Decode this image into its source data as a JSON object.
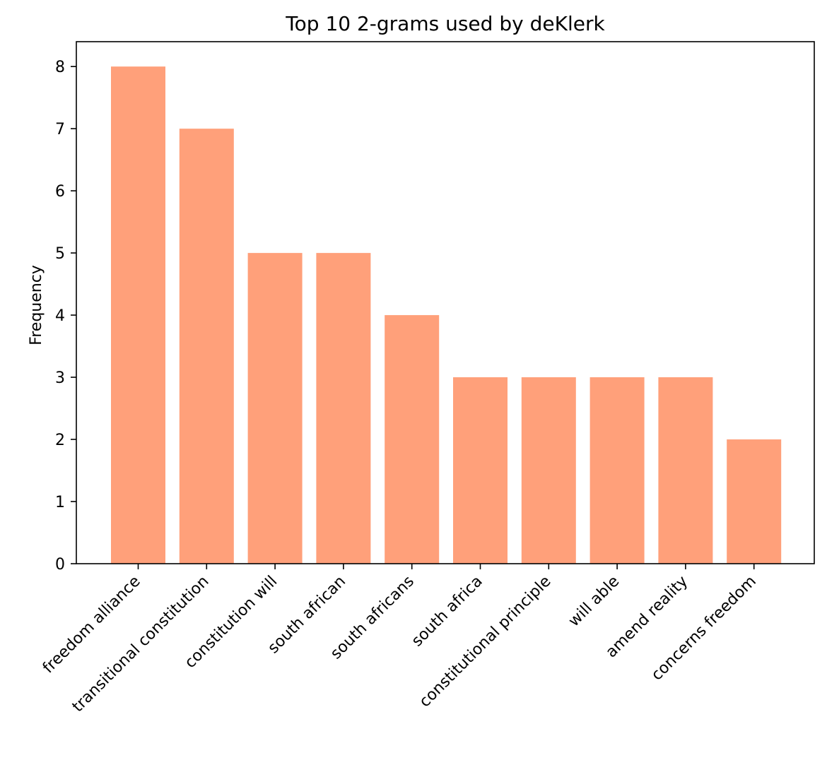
{
  "chart_data": {
    "type": "bar",
    "title": "Top 10 2-grams used by deKlerk",
    "xlabel": "",
    "ylabel": "Frequency",
    "categories": [
      "freedom alliance",
      "transitional constitution",
      "constitution will",
      "south african",
      "south africans",
      "south africa",
      "constitutional principle",
      "will able",
      "amend reality",
      "concerns freedom"
    ],
    "values": [
      8,
      7,
      5,
      5,
      4,
      3,
      3,
      3,
      3,
      2
    ],
    "ylim": [
      0,
      8.4
    ],
    "yticks": [
      0,
      1,
      2,
      3,
      4,
      5,
      6,
      7,
      8
    ],
    "bar_color": "#FFA07A",
    "grid": false,
    "legend": "none"
  }
}
